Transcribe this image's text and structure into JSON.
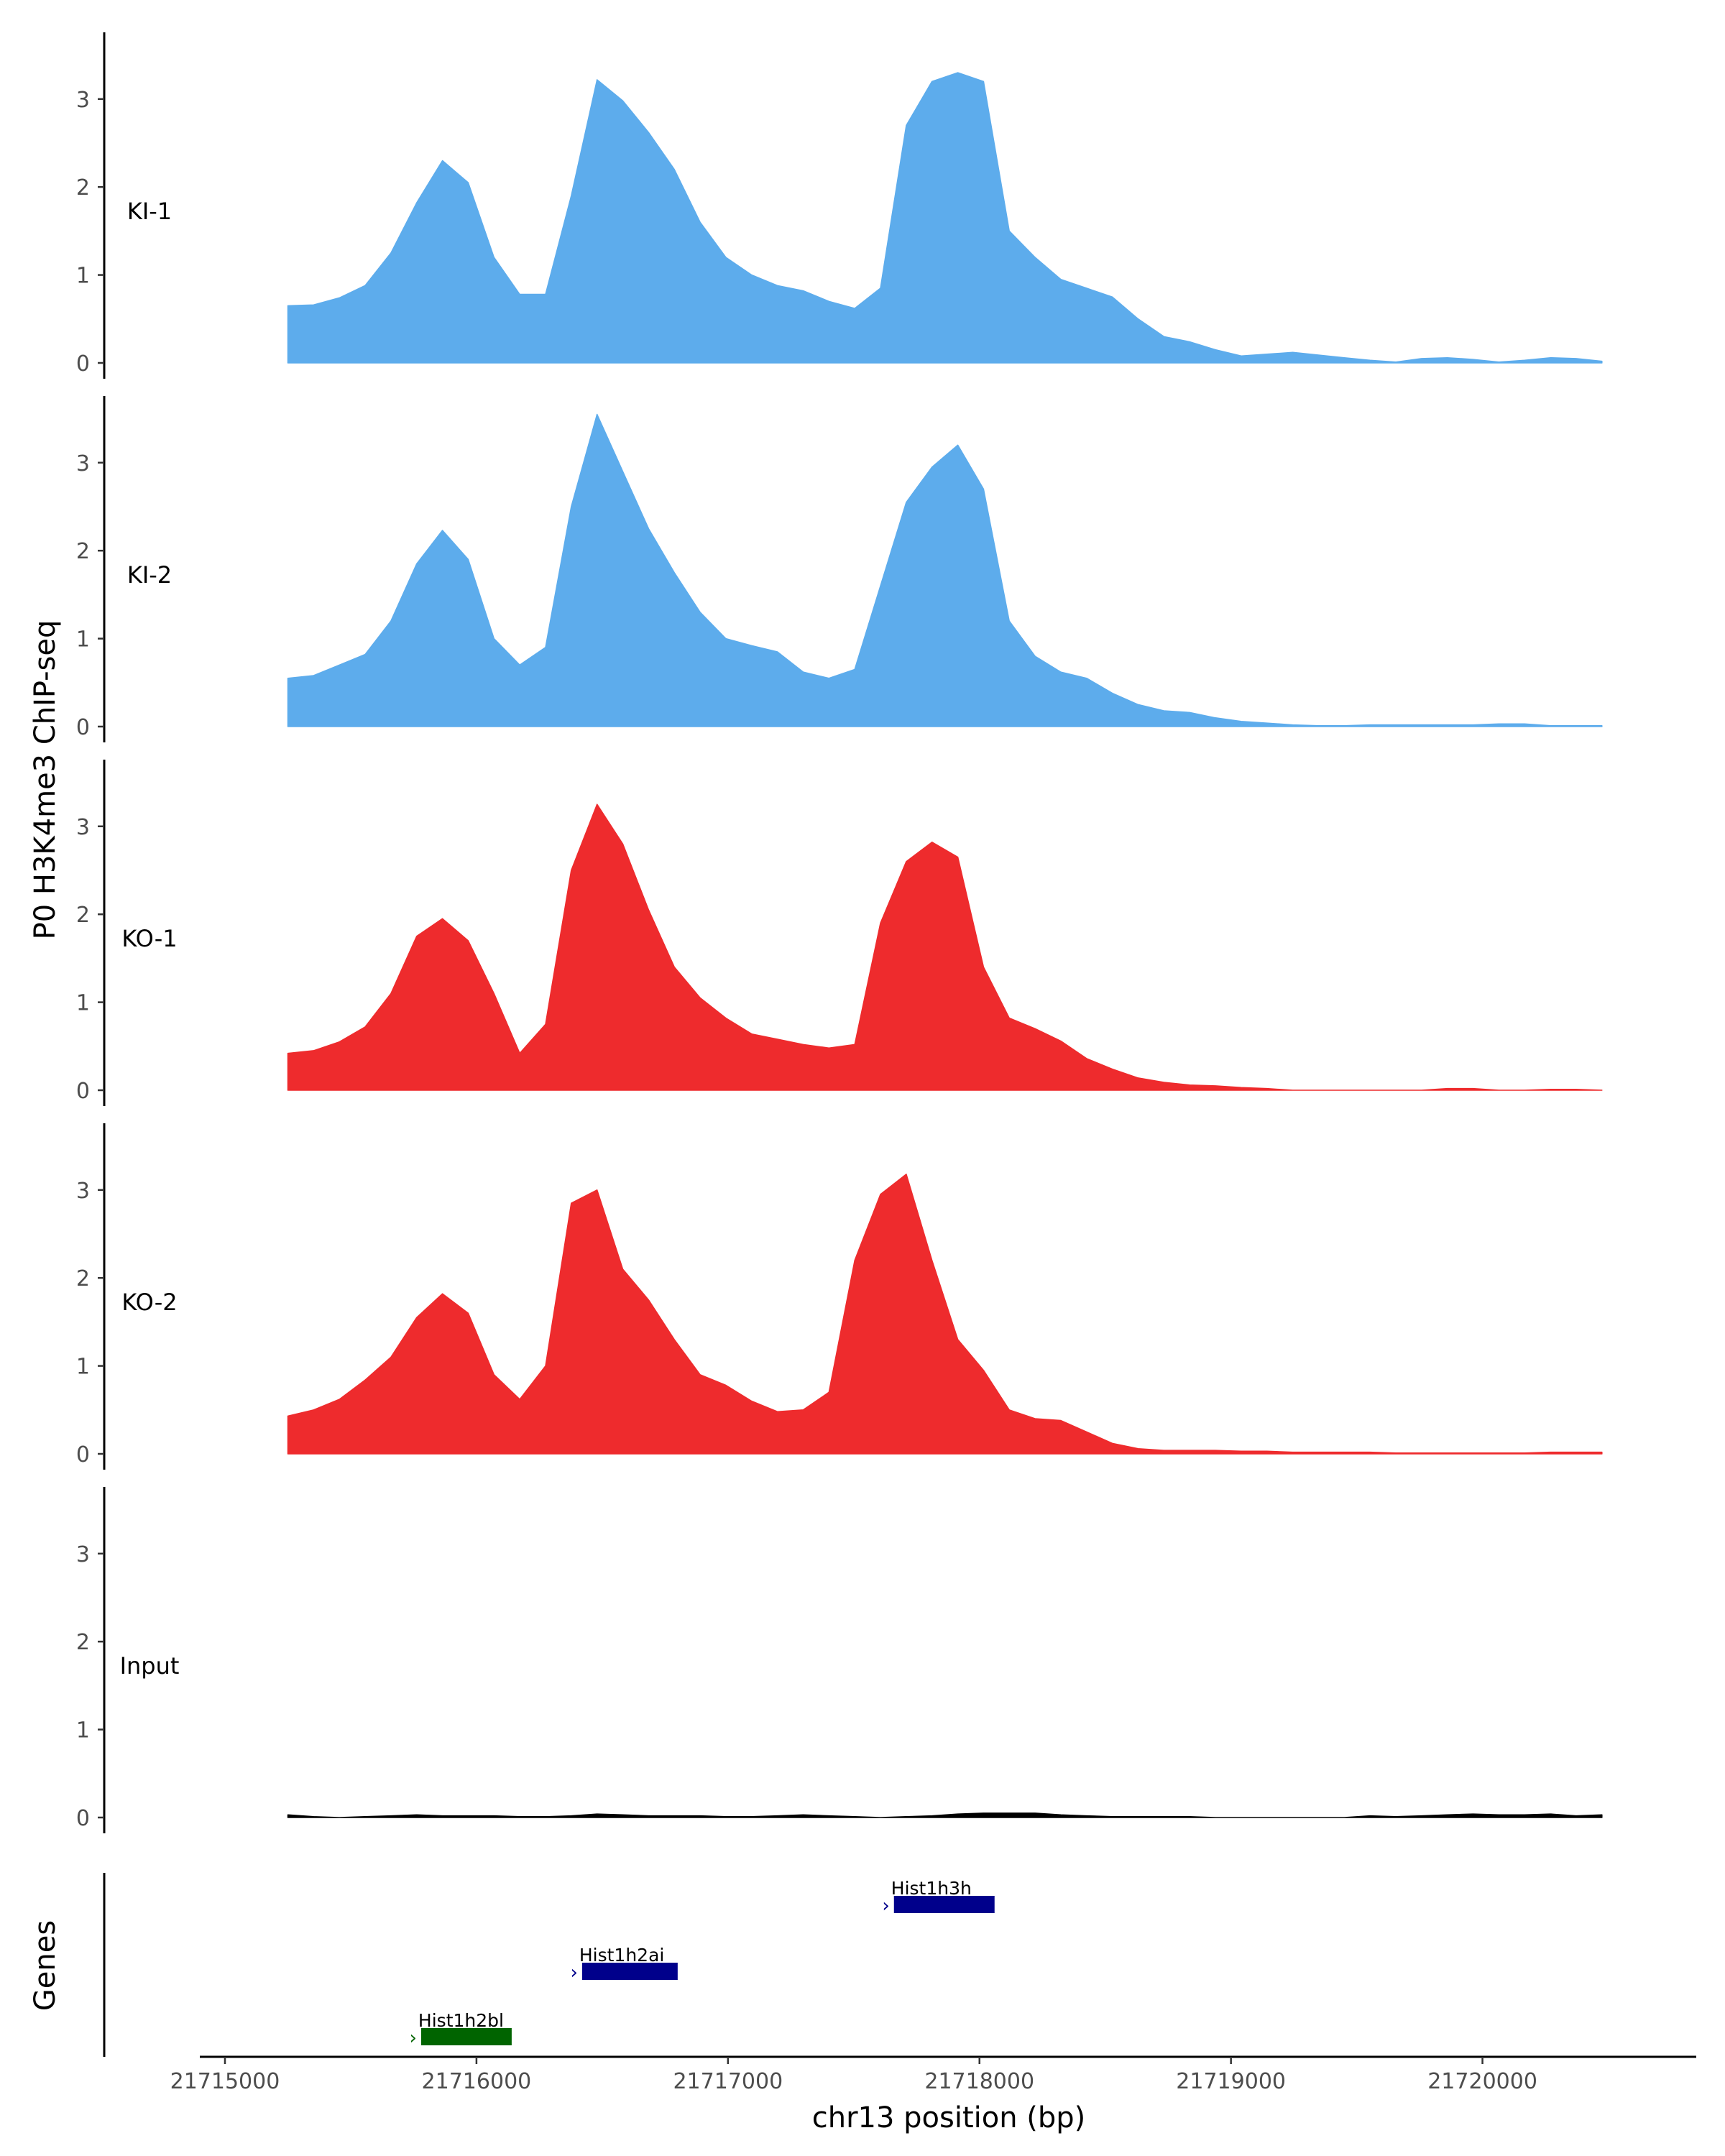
{
  "chart_data": {
    "type": "area",
    "title": "",
    "ylabel": "P0 H3K4me3 ChIP-seq",
    "xlabel": "chr13 position (bp)",
    "gene_axis_label": "Genes",
    "xlim": [
      21714900,
      21720850
    ],
    "ylim": [
      0,
      3.75
    ],
    "y_ticks": [
      "0",
      "1",
      "2",
      "3"
    ],
    "x_ticks": [
      {
        "value": 21715000,
        "label": "21715000"
      },
      {
        "value": 21716000,
        "label": "21716000"
      },
      {
        "value": 21717000,
        "label": "21717000"
      },
      {
        "value": 21718000,
        "label": "21718000"
      },
      {
        "value": 21719000,
        "label": "21719000"
      },
      {
        "value": 21720000,
        "label": "21720000"
      }
    ],
    "grid": false,
    "series": [
      {
        "name": "KI-1",
        "color": "#5dacec",
        "x_start": 21715250,
        "x_end": 21720475,
        "values": [
          0.65,
          0.66,
          0.74,
          0.88,
          1.25,
          1.82,
          2.3,
          2.05,
          1.2,
          0.78,
          0.78,
          1.9,
          3.22,
          2.98,
          2.62,
          2.2,
          1.6,
          1.2,
          1.0,
          0.88,
          0.82,
          0.7,
          0.62,
          0.85,
          2.7,
          3.2,
          3.3,
          3.2,
          1.5,
          1.2,
          0.95,
          0.85,
          0.75,
          0.5,
          0.3,
          0.24,
          0.15,
          0.08,
          0.1,
          0.12,
          0.09,
          0.06,
          0.03,
          0.01,
          0.05,
          0.06,
          0.04,
          0.01,
          0.03,
          0.06,
          0.05,
          0.02
        ]
      },
      {
        "name": "KI-2",
        "color": "#5dacec",
        "x_start": 21715250,
        "x_end": 21720475,
        "values": [
          0.55,
          0.58,
          0.7,
          0.82,
          1.2,
          1.85,
          2.23,
          1.9,
          1.0,
          0.7,
          0.9,
          2.5,
          3.55,
          2.9,
          2.25,
          1.75,
          1.3,
          1.0,
          0.92,
          0.85,
          0.62,
          0.55,
          0.65,
          1.6,
          2.55,
          2.95,
          3.2,
          2.7,
          1.2,
          0.8,
          0.62,
          0.55,
          0.38,
          0.25,
          0.18,
          0.16,
          0.1,
          0.06,
          0.04,
          0.02,
          0.01,
          0.01,
          0.02,
          0.02,
          0.02,
          0.02,
          0.02,
          0.03,
          0.03,
          0.01,
          0.01,
          0.01
        ]
      },
      {
        "name": "KO-1",
        "color": "#ee2b2d",
        "x_start": 21715250,
        "x_end": 21720475,
        "values": [
          0.42,
          0.45,
          0.55,
          0.72,
          1.1,
          1.75,
          1.95,
          1.7,
          1.1,
          0.42,
          0.75,
          2.5,
          3.25,
          2.8,
          2.05,
          1.4,
          1.05,
          0.82,
          0.64,
          0.58,
          0.52,
          0.48,
          0.52,
          1.9,
          2.6,
          2.82,
          2.65,
          1.4,
          0.82,
          0.7,
          0.56,
          0.36,
          0.24,
          0.14,
          0.09,
          0.06,
          0.05,
          0.03,
          0.02,
          0.0,
          0.0,
          0.0,
          0.0,
          0.0,
          0.0,
          0.02,
          0.02,
          0.0,
          0.0,
          0.01,
          0.01,
          0.0
        ]
      },
      {
        "name": "KO-2",
        "color": "#ee2b2d",
        "x_start": 21715250,
        "x_end": 21720475,
        "values": [
          0.43,
          0.5,
          0.62,
          0.84,
          1.1,
          1.55,
          1.82,
          1.6,
          0.9,
          0.62,
          1.0,
          2.85,
          3.0,
          2.1,
          1.75,
          1.3,
          0.9,
          0.78,
          0.6,
          0.48,
          0.5,
          0.7,
          2.2,
          2.95,
          3.18,
          2.2,
          1.3,
          0.95,
          0.5,
          0.4,
          0.38,
          0.25,
          0.12,
          0.06,
          0.04,
          0.04,
          0.04,
          0.03,
          0.03,
          0.02,
          0.02,
          0.02,
          0.02,
          0.01,
          0.01,
          0.01,
          0.01,
          0.01,
          0.01,
          0.02,
          0.02,
          0.02
        ]
      },
      {
        "name": "Input",
        "color": "#000000",
        "x_start": 21715250,
        "x_end": 21720475,
        "values": [
          0.03,
          0.01,
          0.0,
          0.01,
          0.02,
          0.03,
          0.02,
          0.02,
          0.02,
          0.01,
          0.01,
          0.02,
          0.04,
          0.03,
          0.02,
          0.02,
          0.02,
          0.01,
          0.01,
          0.02,
          0.03,
          0.02,
          0.01,
          0.0,
          0.01,
          0.02,
          0.04,
          0.05,
          0.05,
          0.05,
          0.03,
          0.02,
          0.01,
          0.01,
          0.01,
          0.01,
          0.0,
          0.0,
          0.0,
          0.0,
          0.0,
          0.0,
          0.02,
          0.01,
          0.02,
          0.03,
          0.04,
          0.03,
          0.03,
          0.04,
          0.02,
          0.03
        ]
      }
    ],
    "genes": [
      {
        "name": "Hist1h2bl",
        "start": 21715780,
        "end": 21716140,
        "color": "#006400",
        "row": 0
      },
      {
        "name": "Hist1h2ai",
        "start": 21716420,
        "end": 21716800,
        "color": "#00008b",
        "row": 1
      },
      {
        "name": "Hist1h3h",
        "start": 21717660,
        "end": 21718060,
        "color": "#00008b",
        "row": 2
      }
    ]
  }
}
